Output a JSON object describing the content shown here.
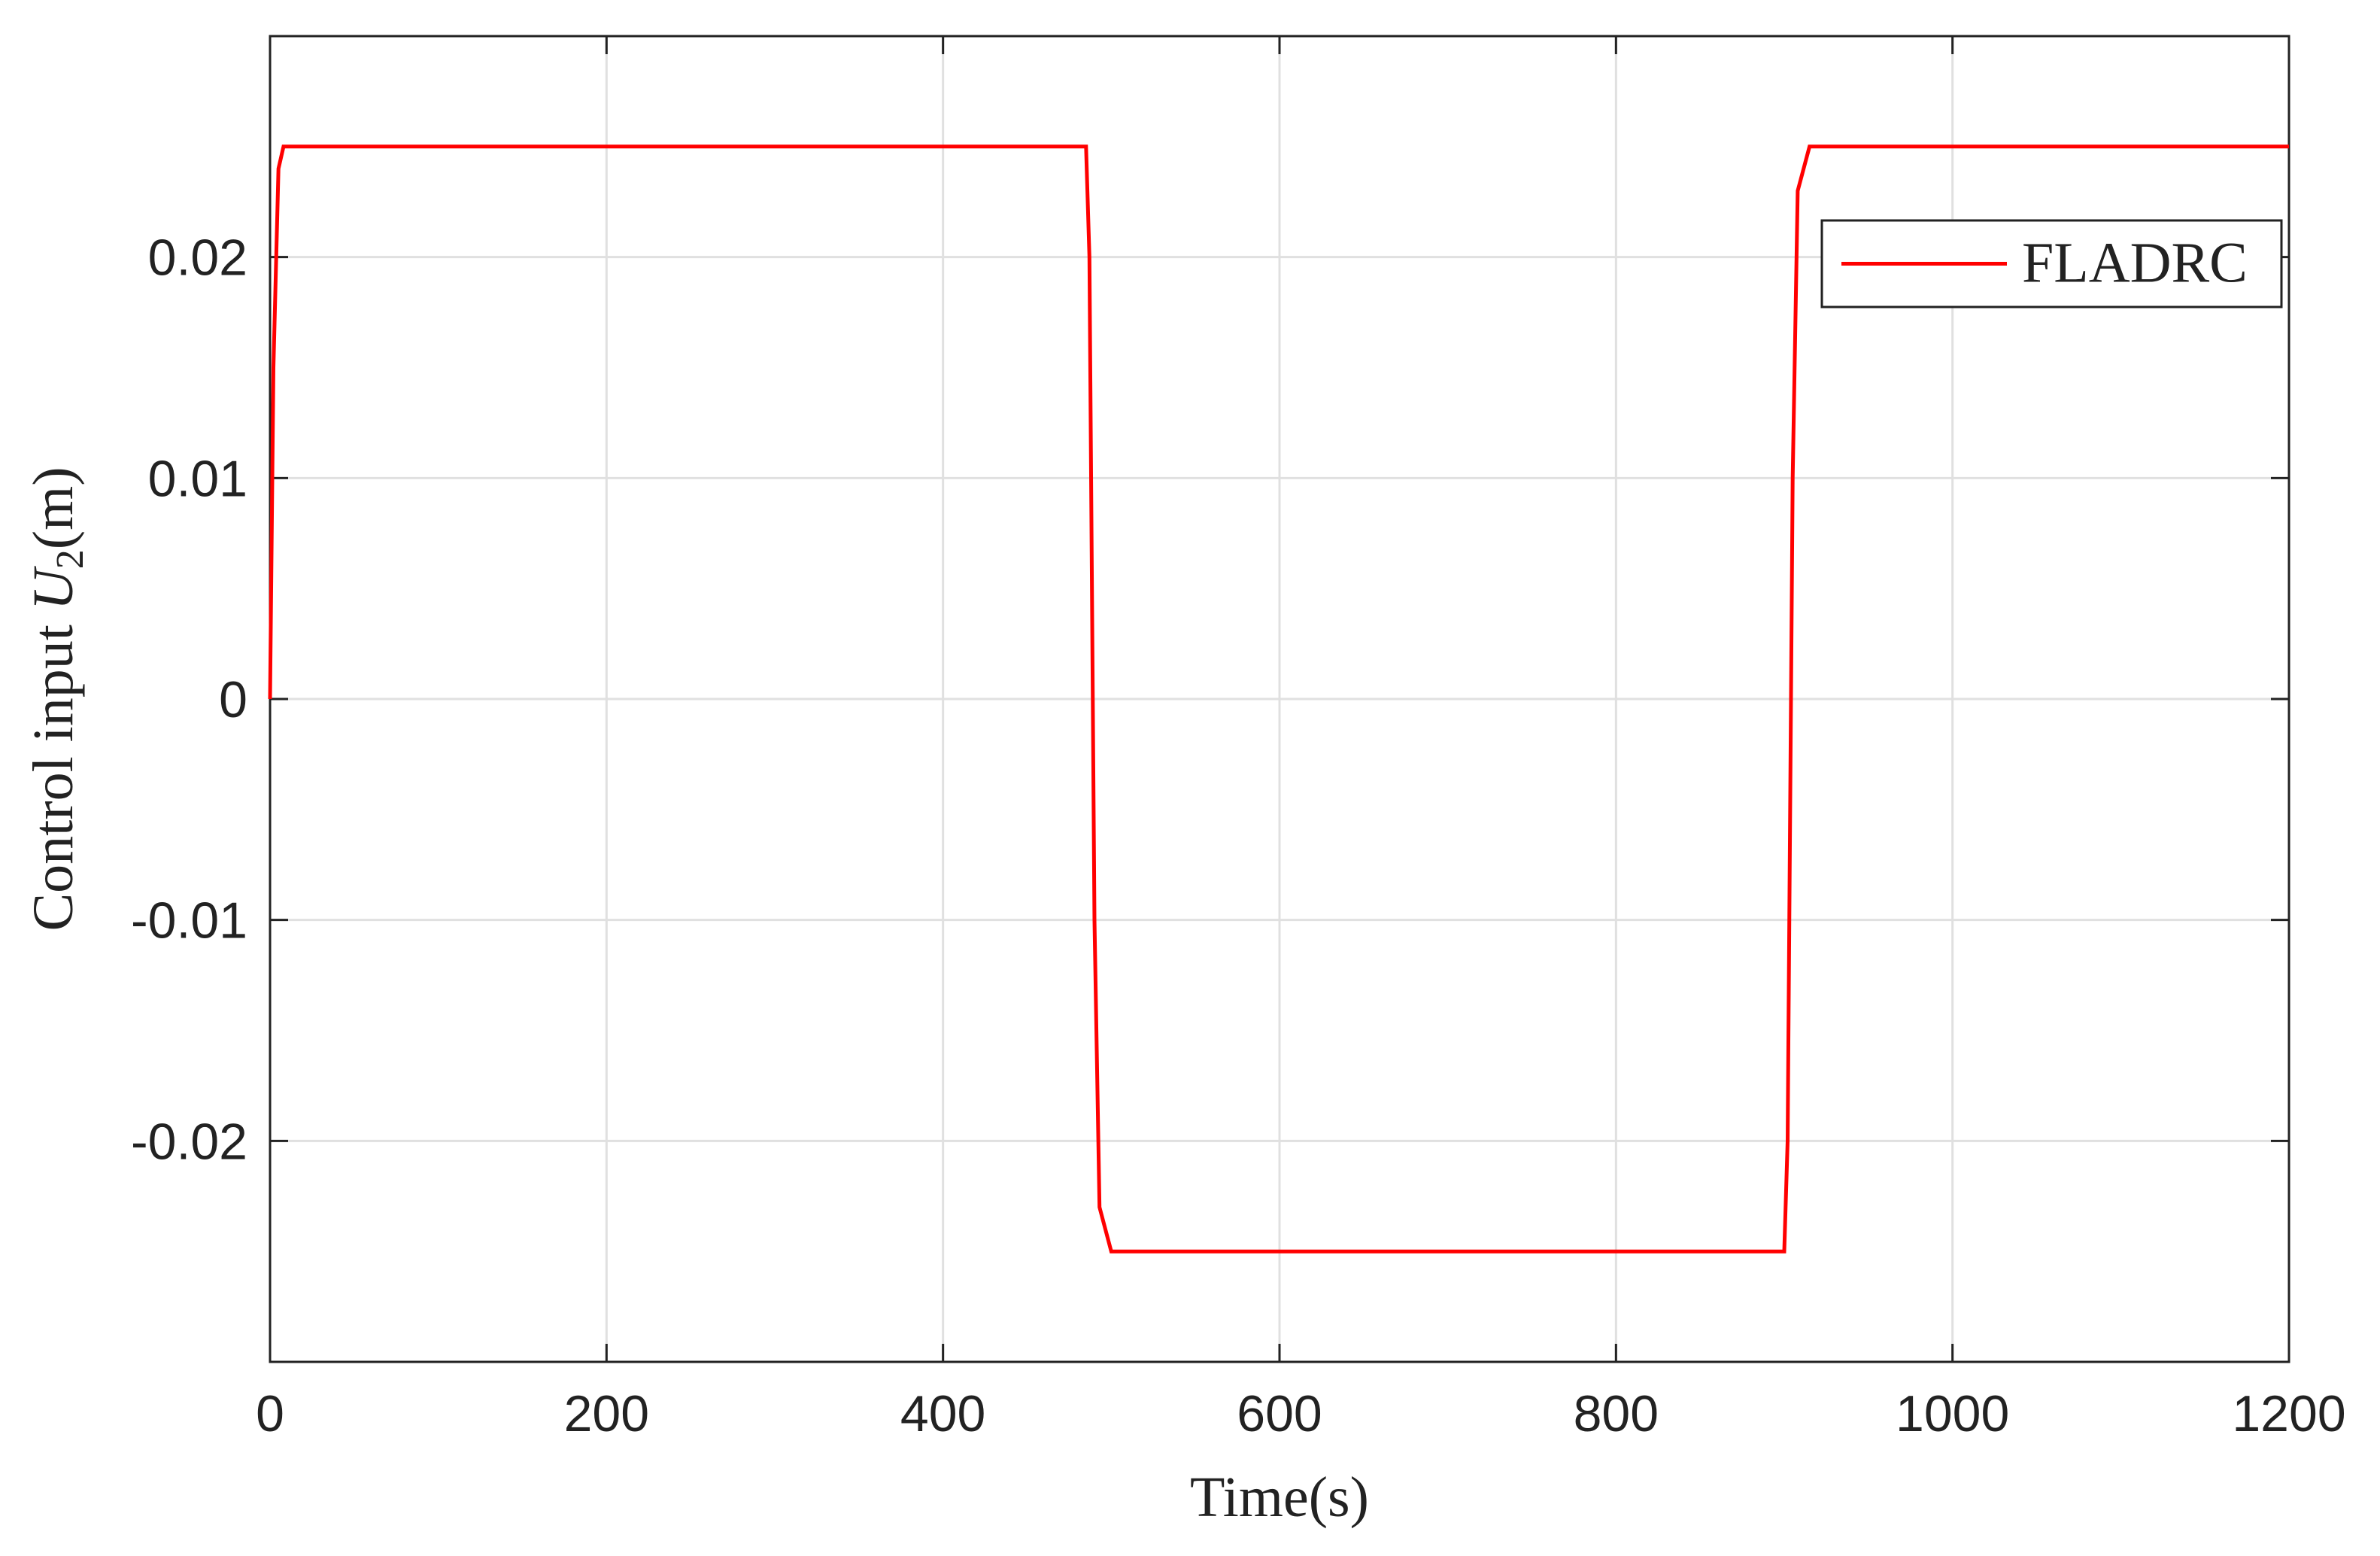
{
  "chart_data": {
    "type": "line",
    "xlabel": "Time(s)",
    "ylabel": {
      "text": "Control input ",
      "var": "U",
      "sub": "2",
      "unit": "(m)"
    },
    "x": [
      0,
      2,
      5,
      8,
      485,
      487,
      490,
      493,
      500,
      900,
      902,
      905,
      908,
      915,
      1200
    ],
    "series": [
      {
        "name": "FLADRC",
        "color": "#ff0000",
        "values": [
          0,
          0.015,
          0.024,
          0.025,
          0.025,
          0.02,
          -0.01,
          -0.023,
          -0.025,
          -0.025,
          -0.02,
          0.01,
          0.023,
          0.025,
          0.025
        ]
      }
    ],
    "xlim": [
      0,
      1200
    ],
    "xticks": [
      0,
      200,
      400,
      600,
      800,
      1000,
      1200
    ],
    "ylim": [
      -0.03,
      0.03
    ],
    "yticks": [
      -0.02,
      -0.01,
      0,
      0.01,
      0.02
    ],
    "grid": true,
    "legend": "upper right"
  }
}
